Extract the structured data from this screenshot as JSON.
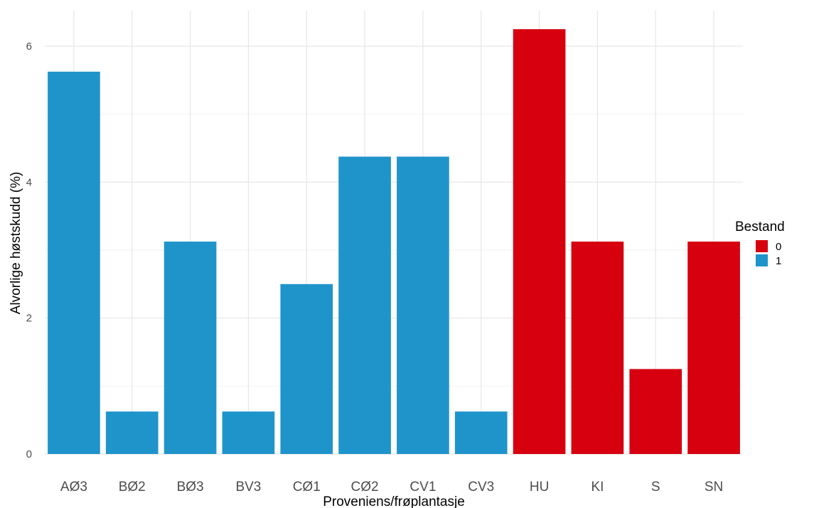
{
  "chart_data": {
    "type": "bar",
    "xlabel": "Proveniens/frøplantasje",
    "ylabel": "Alvorlige høstskudd (%)",
    "categories": [
      "AØ3",
      "BØ2",
      "BØ3",
      "BV3",
      "CØ1",
      "CØ2",
      "CV1",
      "CV3",
      "HU",
      "KI",
      "S",
      "SN"
    ],
    "values": [
      5.625,
      0.625,
      3.125,
      0.625,
      2.5,
      4.375,
      4.375,
      0.625,
      6.25,
      3.125,
      1.25,
      3.125
    ],
    "groups": [
      "1",
      "1",
      "1",
      "1",
      "1",
      "1",
      "1",
      "1",
      "0",
      "0",
      "0",
      "0"
    ],
    "yticks": [
      0,
      2,
      4,
      6
    ],
    "ylim": [
      0,
      6.5
    ],
    "grid": true,
    "legend": {
      "title": "Bestand",
      "position": "right",
      "entries": [
        {
          "label": "0",
          "color": "#d7000f"
        },
        {
          "label": "1",
          "color": "#1f94cb"
        }
      ]
    }
  }
}
